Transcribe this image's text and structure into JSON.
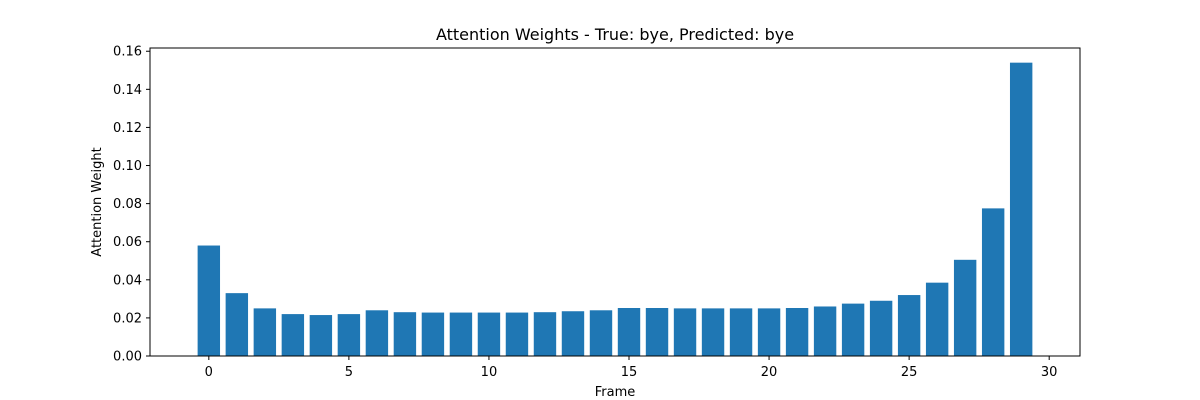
{
  "chart_data": {
    "type": "bar",
    "title": "Attention Weights - True: bye, Predicted: bye",
    "xlabel": "Frame",
    "ylabel": "Attention Weight",
    "x": [
      0,
      1,
      2,
      3,
      4,
      5,
      6,
      7,
      8,
      9,
      10,
      11,
      12,
      13,
      14,
      15,
      16,
      17,
      18,
      19,
      20,
      21,
      22,
      23,
      24,
      25,
      26,
      27,
      28,
      29
    ],
    "values": [
      0.058,
      0.033,
      0.025,
      0.022,
      0.0215,
      0.022,
      0.024,
      0.023,
      0.0228,
      0.0228,
      0.0228,
      0.0228,
      0.023,
      0.0235,
      0.024,
      0.0252,
      0.0252,
      0.025,
      0.025,
      0.025,
      0.025,
      0.0252,
      0.026,
      0.0275,
      0.029,
      0.032,
      0.0385,
      0.0505,
      0.0775,
      0.154
    ],
    "xlim": [
      -2.1,
      31.1
    ],
    "ylim": [
      0,
      0.1617
    ],
    "xticks": [
      0,
      5,
      10,
      15,
      20,
      25,
      30
    ],
    "xtick_labels": [
      "0",
      "5",
      "10",
      "15",
      "20",
      "25",
      "30"
    ],
    "yticks": [
      0,
      0.02,
      0.04,
      0.06,
      0.08,
      0.1,
      0.12,
      0.14,
      0.16
    ],
    "ytick_labels": [
      "0.00",
      "0.02",
      "0.04",
      "0.06",
      "0.08",
      "0.10",
      "0.12",
      "0.14",
      "0.16"
    ],
    "bar_color": "#1f77b4",
    "grid": false,
    "legend": false
  }
}
